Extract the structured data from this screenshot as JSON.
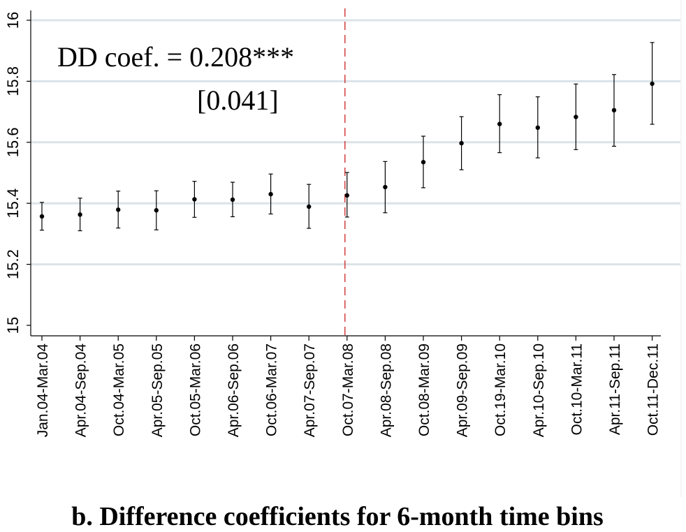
{
  "chart_data": {
    "type": "scatter",
    "title": "",
    "xlabel": "",
    "ylabel": "",
    "ylim": [
      15,
      16
    ],
    "yticks": [
      "15",
      "15.2",
      "15.4",
      "15.6",
      "15.8",
      "16"
    ],
    "categories": [
      "Jan.04-Mar.04",
      "Apr.04-Sep.04",
      "Oct.04-Mar.05",
      "Apr.05-Sep.05",
      "Oct.05-Mar.06",
      "Apr.06-Sep.06",
      "Oct.06-Mar.07",
      "Apr.07-Sep.07",
      "Oct.07-Mar.08",
      "Apr.08-Sep.08",
      "Oct.08-Mar.09",
      "Apr.09-Sep.09",
      "Oct.19-Mar.10",
      "Apr.10-Sep.10",
      "Oct.10-Mar.11",
      "Apr.11-Sep.11",
      "Oct.11-Dec.11"
    ],
    "series": [
      {
        "values": [
          15.357,
          15.363,
          15.379,
          15.377,
          15.413,
          15.412,
          15.43,
          15.389,
          15.426,
          15.453,
          15.535,
          15.597,
          15.66,
          15.648,
          15.683,
          15.705,
          15.792
        ],
        "ci_low": [
          15.312,
          15.31,
          15.319,
          15.313,
          15.354,
          15.356,
          15.365,
          15.318,
          15.355,
          15.369,
          15.451,
          15.51,
          15.566,
          15.549,
          15.576,
          15.587,
          15.659
        ],
        "ci_high": [
          15.403,
          15.417,
          15.44,
          15.441,
          15.472,
          15.469,
          15.496,
          15.462,
          15.501,
          15.537,
          15.62,
          15.684,
          15.756,
          15.749,
          15.791,
          15.822,
          15.927
        ]
      }
    ],
    "reference_line": {
      "category": "Oct.07-Mar.08",
      "style": "dashed",
      "color": "#cc2222"
    },
    "grid": "horizontal",
    "annotations": [
      "DD coef. = 0.208***",
      "[0.041]"
    ],
    "caption": "b. Difference coefficients for 6-month time bins"
  },
  "colors": {
    "grid": "#dbe3e8",
    "marker": "#000000",
    "refline": "#cc2222"
  }
}
